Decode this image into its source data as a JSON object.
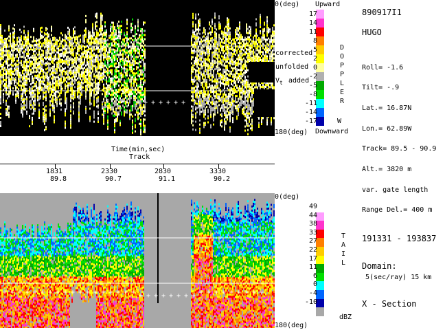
{
  "top_panel": {
    "top_label": "0(deg)",
    "bottom_label": "180(deg)",
    "annotations": [
      "corrected",
      "unfolded",
      "added"
    ],
    "vt_symbol": "V",
    "vt_sub": "t",
    "colorbar": {
      "top_title": "Upward",
      "bottom_title": "Downward",
      "field_letters": [
        "D",
        "O",
        "P",
        "P",
        "L",
        "E",
        "R"
      ],
      "w_letter": "W",
      "levels": [
        "17",
        "14",
        "11",
        "8",
        "5",
        "2",
        "0",
        "-2",
        "-5",
        "-8",
        "-11",
        "-14",
        "-17"
      ],
      "colors": [
        "#ff9cff",
        "#ff33cc",
        "#ff0000",
        "#ff7f00",
        "#ffcc00",
        "#ffff00",
        "#ffffa0",
        "#b0b0b0",
        "#00aa00",
        "#00e000",
        "#00ffff",
        "#0066ff",
        "#0000aa"
      ]
    }
  },
  "middle": {
    "title": "Time(min,sec)",
    "subtitle": "Track",
    "times": [
      "1831",
      "2330",
      "2830",
      "3330"
    ],
    "tracks": [
      "89.8",
      "90.7",
      "91.1",
      "90.2"
    ]
  },
  "bottom_panel": {
    "top_label": "0(deg)",
    "bottom_label": "180(deg)",
    "colorbar": {
      "field_letters": [
        "T",
        "A",
        "I",
        "L"
      ],
      "unit": "dBZ",
      "levels": [
        "49",
        "44",
        "38",
        "33",
        "27",
        "22",
        "17",
        "11",
        "6",
        "0",
        "-4",
        "-10"
      ],
      "colors": [
        "#ffffff",
        "#ff9cff",
        "#ff33cc",
        "#ff0000",
        "#ff7f00",
        "#ffcc00",
        "#ffff00",
        "#00aa00",
        "#00e000",
        "#00ffff",
        "#0066ff",
        "#0000aa",
        "#a8a8a8"
      ]
    }
  },
  "info": {
    "flight_id": "890917I1",
    "storm": "HUGO",
    "roll": "Roll=  -1.6",
    "tilt": "Tilt=   -.9",
    "lat": "Lat.=    16.87N",
    "lon": "Lon.=    62.89W",
    "track": "Track= 89.5 -  90.9",
    "alt": "Alt.= 3820 m",
    "gate": "var. gate length",
    "range_del": "Range Del.=   400 m",
    "time_range": "191331 - 193837",
    "domain_label": "Domain:",
    "domain_value": "5(sec/ray) 15 km",
    "section": "X - Section"
  },
  "colors": {
    "background": "#ffffff",
    "top_panel_bg": "#000000",
    "bottom_panel_bg": "#a8a8a8"
  }
}
